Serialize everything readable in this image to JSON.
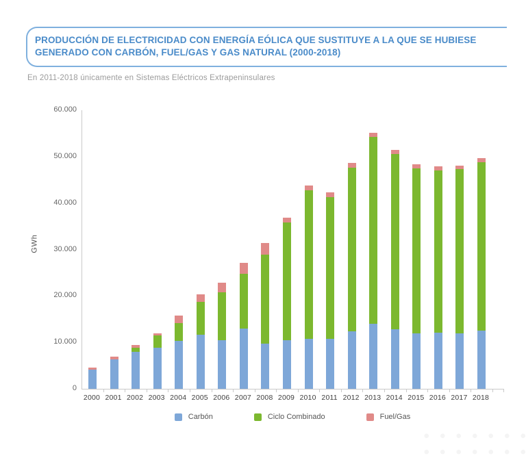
{
  "header": {
    "title_line1": "PRODUCCIÓN DE ELECTRICIDAD CON ENERGÍA EÓLICA QUE SUSTITUYE A LA QUE SE HUBIESE",
    "title_line2": "GENERADO CON CARBÓN, FUEL/GAS Y GAS NATURAL (2000-2018)",
    "subtitle": "En 2011-2018 únicamente en Sistemas Eléctricos Extrapeninsulares"
  },
  "chart_data": {
    "type": "bar",
    "stacked": true,
    "title": "PRODUCCIÓN DE ELECTRICIDAD CON ENERGÍA EÓLICA QUE SUSTITUYE A LA QUE SE HUBIESE GENERADO CON CARBÓN, FUEL/GAS Y GAS NATURAL (2000-2018)",
    "xlabel": "",
    "ylabel": "GWh",
    "ylim": [
      0,
      60000
    ],
    "ytick_step": 10000,
    "ytick_labels": [
      "0",
      "10.000",
      "20.000",
      "30.000",
      "40.000",
      "50.000",
      "60.000"
    ],
    "grid": false,
    "legend_position": "bottom",
    "categories": [
      "2000",
      "2001",
      "2002",
      "2003",
      "2004",
      "2005",
      "2006",
      "2007",
      "2008",
      "2009",
      "2010",
      "2011",
      "2012",
      "2013",
      "2014",
      "2015",
      "2016",
      "2017",
      "2018"
    ],
    "series": [
      {
        "name": "Carbón",
        "color": "#7ea7d8",
        "values": [
          4200,
          6400,
          8000,
          8900,
          10300,
          11600,
          10500,
          13000,
          9700,
          10500,
          10700,
          10800,
          12400,
          14000,
          12900,
          12000,
          12100,
          12000,
          12500
        ]
      },
      {
        "name": "Ciclo Combinado",
        "color": "#7cb82f",
        "values": [
          0,
          0,
          900,
          2600,
          3800,
          7100,
          10300,
          11800,
          19200,
          25300,
          32000,
          30500,
          35200,
          40300,
          37600,
          35500,
          35000,
          35300,
          36300
        ]
      },
      {
        "name": "Fuel/Gas",
        "color": "#e08a88",
        "values": [
          400,
          500,
          600,
          500,
          1700,
          1700,
          2100,
          2400,
          2500,
          1000,
          1100,
          1000,
          1000,
          800,
          900,
          800,
          800,
          800,
          900
        ]
      }
    ],
    "totals": [
      4600,
      6900,
      9500,
      12000,
      15800,
      20400,
      22900,
      27200,
      31400,
      36800,
      43800,
      42300,
      48600,
      55100,
      51400,
      48300,
      47900,
      48100,
      49700
    ]
  },
  "colors": {
    "title_text": "#4a8bc9",
    "title_border": "#7fb0de",
    "subtitle_text": "#9b9b9b",
    "axis_line": "#c9c9c9",
    "ytick_label": "#666666",
    "xtick_label": "#3d3d3d",
    "legend_text": "#555555"
  }
}
